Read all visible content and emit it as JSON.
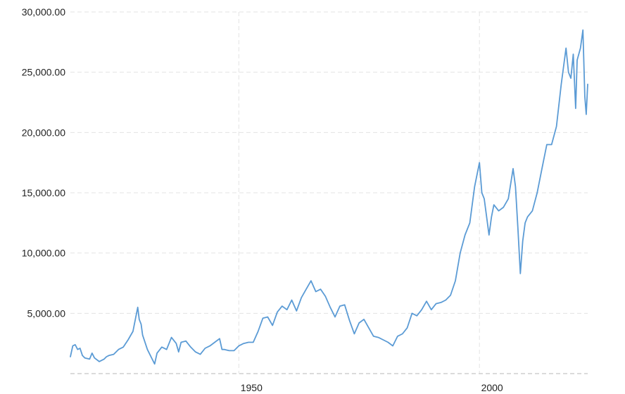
{
  "chart_data": {
    "type": "line",
    "title": "",
    "xlabel": "",
    "ylabel": "",
    "xlim": [
      1915,
      2022.5
    ],
    "ylim": [
      0,
      30000
    ],
    "x_ticks": [
      1950,
      2000
    ],
    "x_tick_labels": [
      "1950",
      "2000"
    ],
    "y_ticks": [
      5000,
      10000,
      15000,
      20000,
      25000,
      30000
    ],
    "y_tick_labels": [
      "5,000.00",
      "10,000.00",
      "15,000.00",
      "20,000.00",
      "25,000.00",
      "30,000.00"
    ],
    "grid": true,
    "legend": "none",
    "series_color": "#5b9bd5",
    "series": [
      {
        "x": [
          1915,
          1915.5,
          1916,
          1916.5,
          1917,
          1917.5,
          1918,
          1919,
          1919.5,
          1920,
          1921,
          1921.5,
          1922,
          1922.5,
          1923,
          1924,
          1925,
          1926,
          1927,
          1928,
          1929,
          1929.3,
          1929.7,
          1930,
          1931,
          1932,
          1932.5,
          1933,
          1934,
          1935,
          1936,
          1937,
          1937.5,
          1938,
          1939,
          1940,
          1941,
          1942,
          1943,
          1944,
          1945,
          1946,
          1946.5,
          1947,
          1948,
          1949,
          1950,
          1951,
          1952,
          1953,
          1954,
          1955,
          1956,
          1957,
          1958,
          1959,
          1960,
          1961,
          1962,
          1963,
          1964,
          1965,
          1966,
          1967,
          1968,
          1969,
          1970,
          1971,
          1972,
          1973,
          1974,
          1975,
          1976,
          1977,
          1978,
          1979,
          1980,
          1981,
          1982,
          1983,
          1984,
          1985,
          1986,
          1987,
          1988,
          1989,
          1990,
          1991,
          1992,
          1993,
          1994,
          1995,
          1996,
          1997,
          1998,
          1999,
          2000,
          2000.5,
          2001,
          2002,
          2002.5,
          2003,
          2004,
          2005,
          2006,
          2007,
          2007.5,
          2008,
          2008.5,
          2009,
          2009.5,
          2010,
          2011,
          2012,
          2013,
          2014,
          2015,
          2016,
          2017,
          2018,
          2018.5,
          2019,
          2019.5,
          2020,
          2020.3,
          2021,
          2021.5,
          2021.9,
          2022.2,
          2022.5
        ],
        "values": [
          1400,
          2300,
          2400,
          2000,
          2100,
          1500,
          1300,
          1200,
          1700,
          1300,
          1000,
          1100,
          1200,
          1400,
          1500,
          1600,
          2000,
          2200,
          2800,
          3500,
          5500,
          4500,
          4100,
          3200,
          2000,
          1200,
          800,
          1700,
          2200,
          2000,
          3000,
          2500,
          1800,
          2600,
          2700,
          2200,
          1800,
          1600,
          2100,
          2300,
          2600,
          2900,
          2000,
          2000,
          1900,
          1900,
          2300,
          2500,
          2600,
          2600,
          3500,
          4600,
          4700,
          4000,
          5100,
          5600,
          5300,
          6100,
          5200,
          6300,
          7000,
          7700,
          6800,
          7000,
          6400,
          5500,
          4700,
          5600,
          5700,
          4400,
          3300,
          4200,
          4500,
          3800,
          3100,
          3000,
          2800,
          2600,
          2300,
          3100,
          3300,
          3800,
          5000,
          4800,
          5300,
          6000,
          5300,
          5800,
          5900,
          6100,
          6500,
          7700,
          10000,
          11500,
          12500,
          15500,
          17500,
          15000,
          14500,
          11500,
          13000,
          14000,
          13500,
          13800,
          14500,
          17000,
          15500,
          12000,
          8300,
          11000,
          12500,
          13000,
          13500,
          15000,
          17000,
          19000,
          19000,
          20500,
          24000,
          27000,
          25000,
          24500,
          26500,
          22000,
          26000,
          27000,
          28500,
          23000,
          21500,
          24000
        ],
        "name": ""
      }
    ]
  }
}
